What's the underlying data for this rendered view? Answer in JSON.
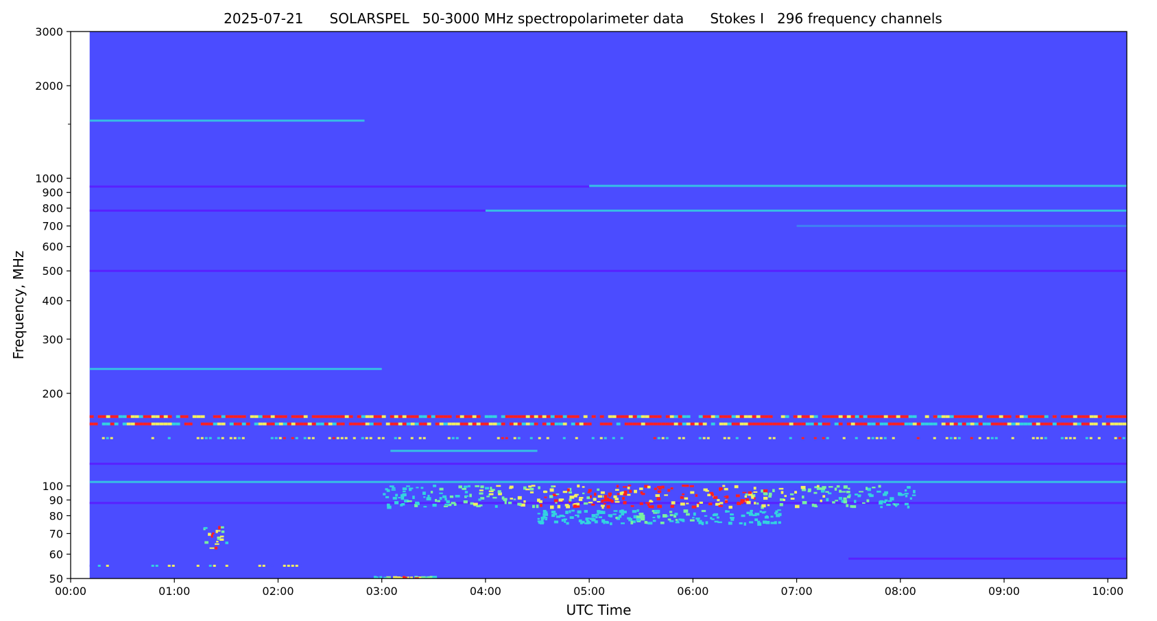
{
  "chart_data": {
    "type": "heatmap",
    "title": "2025-07-21      SOLARSPEL   50-3000 MHz spectropolarimeter data      Stokes I   296 frequency channels",
    "xlabel": "UTC Time",
    "ylabel": "Frequency, MHz",
    "x_scale": "time",
    "y_scale": "log",
    "xlim": [
      "00:00",
      "10:11"
    ],
    "ylim": [
      50,
      3000
    ],
    "data_start": "00:11",
    "x_ticks": [
      "00:00",
      "01:00",
      "02:00",
      "03:00",
      "04:00",
      "05:00",
      "06:00",
      "07:00",
      "08:00",
      "09:00",
      "10:00"
    ],
    "y_ticks_labeled": [
      50,
      60,
      70,
      80,
      90,
      100,
      200,
      300,
      400,
      500,
      600,
      700,
      800,
      900,
      1000,
      2000,
      3000
    ],
    "y_ticks_minor": [
      1500
    ],
    "colormap": [
      "#5a1aff",
      "#4b4cff",
      "#3c8cf0",
      "#33d3e0",
      "#7af0a0",
      "#f4f060",
      "#ff2020"
    ],
    "background_color": "#4b4cff",
    "features": [
      {
        "kind": "band",
        "f": 1540,
        "t0": "00:11",
        "t1": "02:50",
        "intensity": 0.3
      },
      {
        "kind": "band",
        "f": 940,
        "t0": "00:11",
        "t1": "05:00",
        "intensity": -0.6
      },
      {
        "kind": "band",
        "f": 945,
        "t0": "05:00",
        "t1": "10:11",
        "intensity": 0.35
      },
      {
        "kind": "band",
        "f": 785,
        "t0": "00:11",
        "t1": "04:00",
        "intensity": -0.6
      },
      {
        "kind": "band",
        "f": 785,
        "t0": "04:00",
        "t1": "10:11",
        "intensity": 0.3
      },
      {
        "kind": "band",
        "f": 700,
        "t0": "07:00",
        "t1": "10:11",
        "intensity": 0.25
      },
      {
        "kind": "band",
        "f": 500,
        "t0": "00:11",
        "t1": "10:11",
        "intensity": -0.4
      },
      {
        "kind": "band",
        "f": 240,
        "t0": "00:11",
        "t1": "03:00",
        "intensity": 0.3
      },
      {
        "kind": "band",
        "f": 168,
        "t0": "00:11",
        "t1": "10:11",
        "intensity": 1.0
      },
      {
        "kind": "band",
        "f": 159,
        "t0": "00:11",
        "t1": "10:11",
        "intensity": 1.0
      },
      {
        "kind": "band",
        "f": 143,
        "t0": "00:11",
        "t1": "10:11",
        "intensity": 0.65
      },
      {
        "kind": "band",
        "f": 130,
        "t0": "03:05",
        "t1": "04:30",
        "intensity": 0.4
      },
      {
        "kind": "band",
        "f": 118,
        "t0": "00:11",
        "t1": "10:11",
        "intensity": -0.7
      },
      {
        "kind": "band",
        "f": 103,
        "t0": "00:11",
        "t1": "10:11",
        "intensity": 0.35
      },
      {
        "kind": "band",
        "f": 88,
        "t0": "00:11",
        "t1": "10:11",
        "intensity": -0.6
      },
      {
        "kind": "band",
        "f": 55,
        "t0": "00:11",
        "t1": "02:30",
        "intensity": 0.6
      },
      {
        "kind": "band",
        "f": 58,
        "t0": "07:30",
        "t1": "10:11",
        "intensity": -0.6
      },
      {
        "kind": "burst",
        "f0": 86,
        "f1": 101,
        "t0": "03:00",
        "t1": "08:10",
        "intensity": 1.0
      },
      {
        "kind": "burst",
        "f0": 76,
        "f1": 84,
        "t0": "04:30",
        "t1": "06:50",
        "intensity": 0.55
      },
      {
        "kind": "burst",
        "f0": 62,
        "f1": 75,
        "t0": "01:15",
        "t1": "01:30",
        "intensity": 1.0
      },
      {
        "kind": "burst",
        "f0": 50,
        "f1": 51,
        "t0": "02:55",
        "t1": "03:30",
        "intensity": 1.0
      }
    ]
  }
}
